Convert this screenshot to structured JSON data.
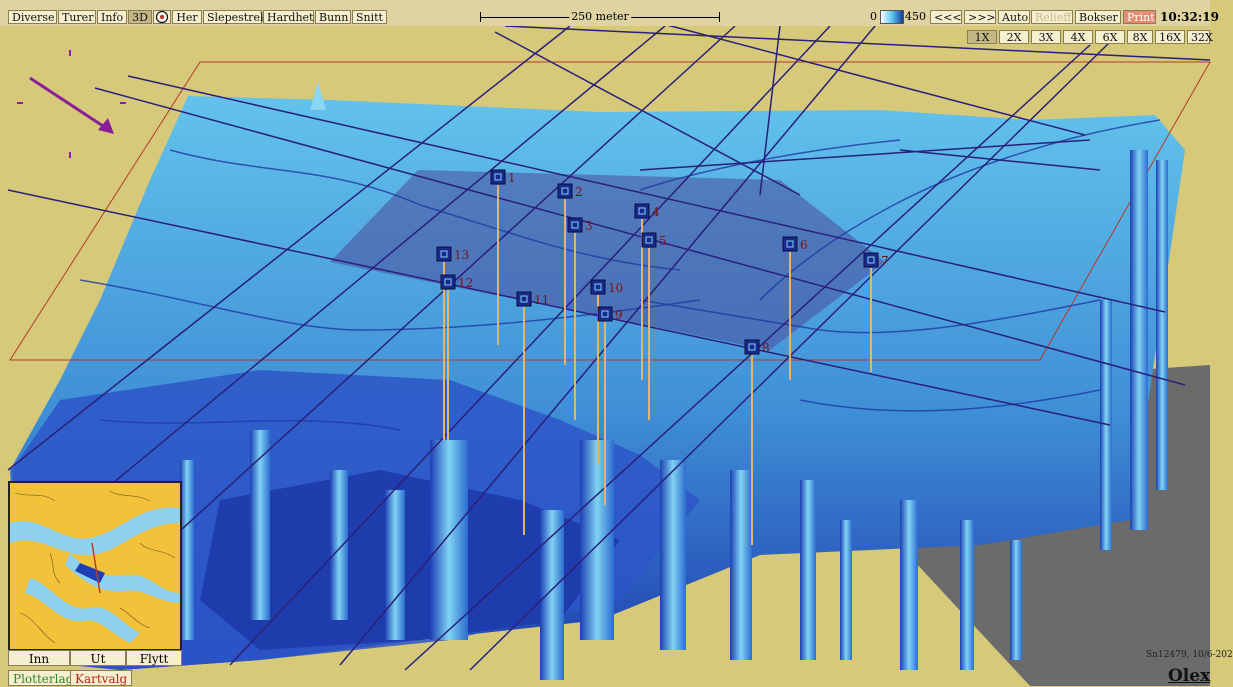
{
  "toolbar": {
    "menu": [
      "Diverse",
      "Turer",
      "Info",
      "3D",
      "Her",
      "Slepestrek",
      "Hardhet",
      "Bunn",
      "Snitt"
    ],
    "scale_label": "250 meter",
    "depth_min": "0",
    "depth_max": "450",
    "prev": "<<<",
    "next": ">>>",
    "auto": "Auto",
    "relieff": "Relieff",
    "bokser": "Bokser",
    "print": "Print",
    "clock": "10:32:19"
  },
  "zoom": [
    "1X",
    "2X",
    "3X",
    "4X",
    "6X",
    "8X",
    "16X",
    "32X"
  ],
  "zoom_selected": "1X",
  "waypoints": [
    "1",
    "2",
    "3",
    "4",
    "5",
    "6",
    "7",
    "8",
    "9",
    "10",
    "11",
    "12",
    "13"
  ],
  "minimap": {
    "buttons": [
      "Inn",
      "Ut",
      "Flytt"
    ],
    "tabs": [
      "Plotterlag",
      "Kartvalg"
    ]
  },
  "footer": {
    "serial": "Sn12479, 10/6-202",
    "logo": "Olex"
  },
  "colors": {
    "land": "#d6c97a",
    "surface": "#56b9e6",
    "deep": "#1d3fb5",
    "track": "#2a1f7a",
    "waypoint": "#1a2a8c",
    "label": "#7a1414",
    "void": "#6b6b6b"
  }
}
